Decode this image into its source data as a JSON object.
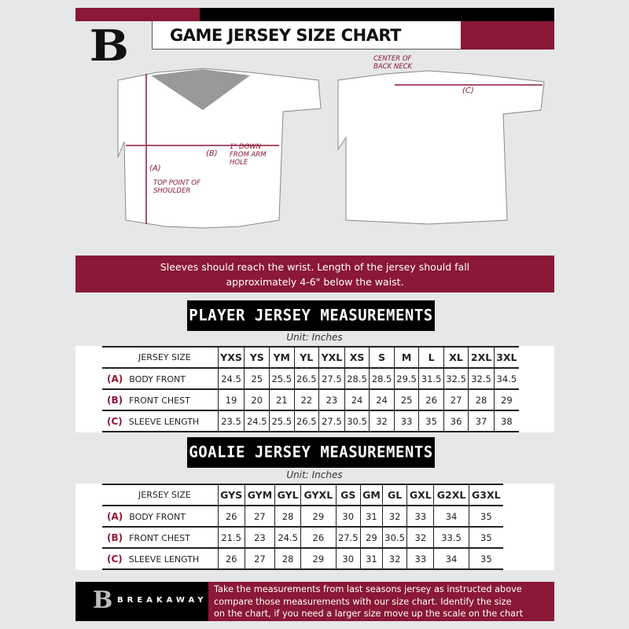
{
  "brand": {
    "name": "BREAKAWAY",
    "logo_letter": "B",
    "maroon": "#8a1836",
    "black": "#000000"
  },
  "header": {
    "title": "GAME JERSEY SIZE CHART"
  },
  "diagram": {
    "label_a": "(A)",
    "label_a_desc": "TOP POINT OF SHOULDER",
    "label_b": "(B)",
    "label_b_desc": "1\" DOWN FROM ARM HOLE",
    "label_c": "(C)",
    "label_c_desc": "CENTER OF BACK NECK"
  },
  "notice": {
    "line1": "Sleeves should reach the wrist. Length of the jersey should fall",
    "line2": "approximately 4-6\" below the waist."
  },
  "player": {
    "heading": "PLAYER JERSEY MEASUREMENTS",
    "unit": "Unit: Inches",
    "size_header": "JERSEY SIZE",
    "sizes": [
      "YXS",
      "YS",
      "YM",
      "YL",
      "YXL",
      "XS",
      "S",
      "M",
      "L",
      "XL",
      "2XL",
      "3XL"
    ],
    "rows": [
      {
        "code": "(A)",
        "label": "BODY FRONT",
        "values": [
          "24.5",
          "25",
          "25.5",
          "26.5",
          "27.5",
          "28.5",
          "28.5",
          "29.5",
          "31.5",
          "32.5",
          "32.5",
          "34.5"
        ]
      },
      {
        "code": "(B)",
        "label": "FRONT CHEST",
        "values": [
          "19",
          "20",
          "21",
          "22",
          "23",
          "24",
          "24",
          "25",
          "26",
          "27",
          "28",
          "29"
        ]
      },
      {
        "code": "(C)",
        "label": "SLEEVE LENGTH",
        "values": [
          "23.5",
          "24.5",
          "25.5",
          "26.5",
          "27.5",
          "30.5",
          "32",
          "33",
          "35",
          "36",
          "37",
          "38"
        ]
      }
    ]
  },
  "goalie": {
    "heading": "GOALIE JERSEY MEASUREMENTS",
    "unit": "Unit: Inches",
    "size_header": "JERSEY SIZE",
    "sizes": [
      "GYS",
      "GYM",
      "GYL",
      "GYXL",
      "GS",
      "GM",
      "GL",
      "GXL",
      "G2XL",
      "G3XL"
    ],
    "rows": [
      {
        "code": "(A)",
        "label": "BODY FRONT",
        "values": [
          "26",
          "27",
          "28",
          "29",
          "30",
          "31",
          "32",
          "33",
          "34",
          "35"
        ]
      },
      {
        "code": "(B)",
        "label": "FRONT CHEST",
        "values": [
          "21.5",
          "23",
          "24.5",
          "26",
          "27.5",
          "29",
          "30.5",
          "32",
          "33.5",
          "35"
        ]
      },
      {
        "code": "(C)",
        "label": "SLEEVE LENGTH",
        "values": [
          "26",
          "27",
          "28",
          "29",
          "30",
          "31",
          "32",
          "33",
          "34",
          "35"
        ]
      }
    ]
  },
  "footer": {
    "line1": "Take the measurements from last seasons jersey as instructed above",
    "line2": "compare those measurements  with our size chart. Identify the size",
    "line3": "on the chart, if you need a larger size move up the scale on the chart"
  }
}
